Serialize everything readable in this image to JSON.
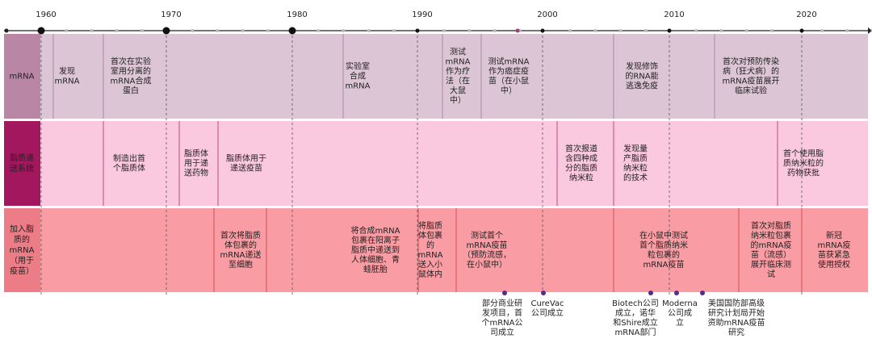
{
  "years": [
    "1960",
    "1970",
    "1980",
    "1990",
    "2000",
    "2010",
    "2020"
  ],
  "rows": [
    {
      "label": [
        "mRNA"
      ],
      "events": [
        [
          "发现",
          "mRNA"
        ],
        [
          "首次在实验",
          "室用分离的",
          "mRNA合成",
          "蛋白"
        ],
        [
          "实验室",
          "合成",
          "mRNA"
        ],
        [
          "测试",
          "mRNA",
          "作为疗",
          "法（在",
          "大鼠",
          "中）"
        ],
        [
          "测试mRNA",
          "作为癌症疫",
          "苗（在小鼠",
          "中）"
        ],
        [
          "发现修饰",
          "的RNA能",
          "逃逸免疫"
        ],
        [
          "首次对预防传染",
          "病（狂犬病）的",
          "mRNA疫苗展开",
          "临床试验"
        ]
      ]
    },
    {
      "label": [
        "脂质递",
        "送系统"
      ],
      "events": [
        [
          "制造出首",
          "个脂质体"
        ],
        [
          "脂质体",
          "用于递",
          "送药物"
        ],
        [
          "脂质体用于",
          "递送疫苗"
        ],
        [
          "首次报道",
          "含四种成",
          "分的脂质",
          "纳米粒"
        ],
        [
          "发现量",
          "产脂质",
          "纳米粒",
          "的技术"
        ],
        [
          "首个使用脂",
          "质纳米粒的",
          "药物获批"
        ]
      ]
    },
    {
      "label": [
        "加入脂",
        "质的",
        "mRNA",
        "（用于",
        "疫苗）"
      ],
      "events": [
        [
          "首次将脂质",
          "体包裹的",
          "mRNA递送",
          "至细胞"
        ],
        [
          "将合成mRNA",
          "包裹在阳离子",
          "脂质中递送到",
          "人体细胞、青",
          "蛙胚胎"
        ],
        [
          "将脂质",
          "体包裹",
          "的",
          "mRNA",
          "送入小",
          "鼠体内"
        ],
        [
          "测试首个",
          "mRNA疫苗",
          "（预防流感，",
          "在小鼠中）"
        ],
        [
          "在小鼠中测试",
          "首个脂质纳米",
          "粒包裹的",
          "mRNA疫苗"
        ],
        [
          "首次对脂质",
          "纳米粒包裹",
          "的mRNA疫",
          "苗（流感）",
          "展开临床测",
          "试"
        ],
        [
          "新冠",
          "mRNA疫",
          "苗获紧急",
          "使用授权"
        ]
      ]
    }
  ],
  "milestones": [
    [
      "部分商业研",
      "发项目，首",
      "个mRNA公",
      "司成立"
    ],
    [
      "CureVac",
      "公司成立"
    ],
    [
      "Biotech公司",
      "成立，诺华",
      "和Shire成立",
      "mRNA部门"
    ],
    [
      "Moderna",
      "公司成",
      "立"
    ],
    [
      "美国国防部高级",
      "研究计划局开始",
      "资助mRNA疫苗",
      "研究"
    ]
  ]
}
